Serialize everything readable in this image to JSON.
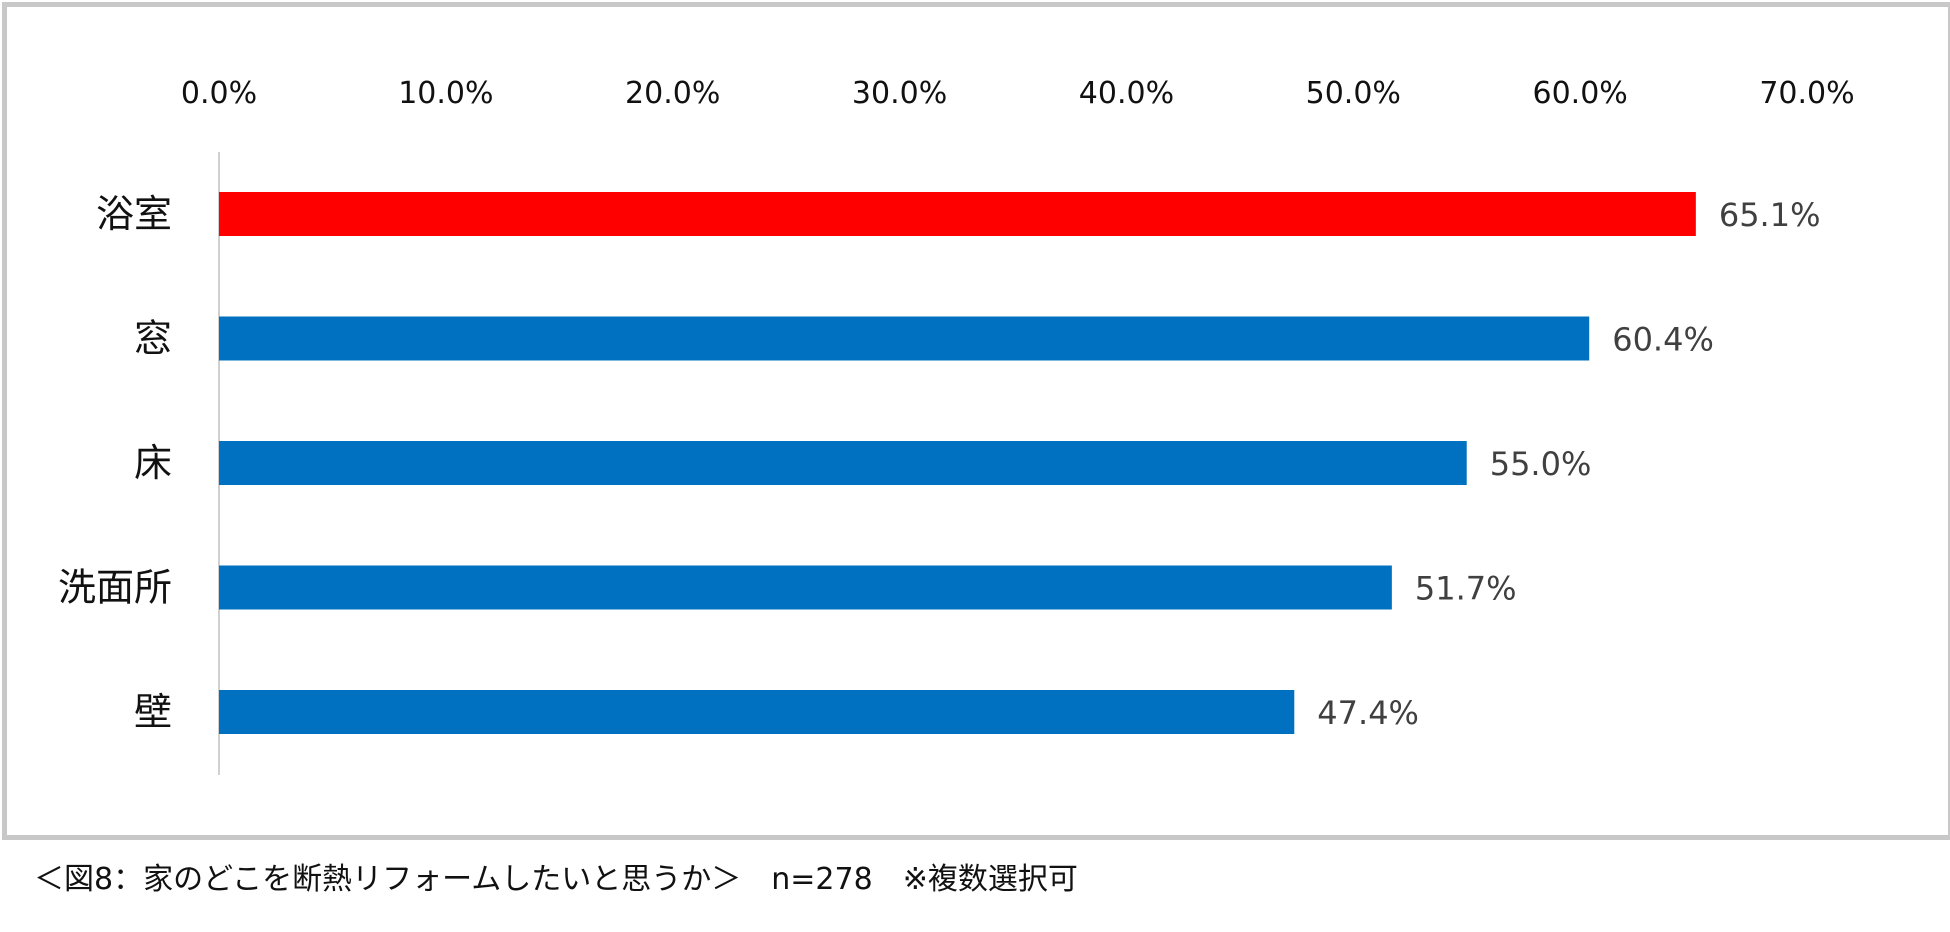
{
  "chart_data": {
    "type": "bar",
    "orientation": "horizontal",
    "categories": [
      "浴室",
      "窓",
      "床",
      "洗面所",
      "壁"
    ],
    "values": [
      65.1,
      60.4,
      55.0,
      51.7,
      47.4
    ],
    "value_labels": [
      "65.1%",
      "60.4%",
      "55.0%",
      "51.7%",
      "47.4%"
    ],
    "xlim": [
      0,
      70
    ],
    "xticks": [
      0,
      10,
      20,
      30,
      40,
      50,
      60,
      70
    ],
    "xtick_labels": [
      "0.0%",
      "10.0%",
      "20.0%",
      "30.0%",
      "40.0%",
      "50.0%",
      "60.0%",
      "70.0%"
    ],
    "xaxis_position": "top",
    "grid": false,
    "highlight_color": "#ff0000",
    "bar_color": "#0070c0",
    "highlight_index": 0,
    "title": "",
    "xlabel": "",
    "ylabel": ""
  },
  "caption": "＜図8：家のどこを断熱リフォームしたいと思うか＞　n=278　※複数選択可"
}
